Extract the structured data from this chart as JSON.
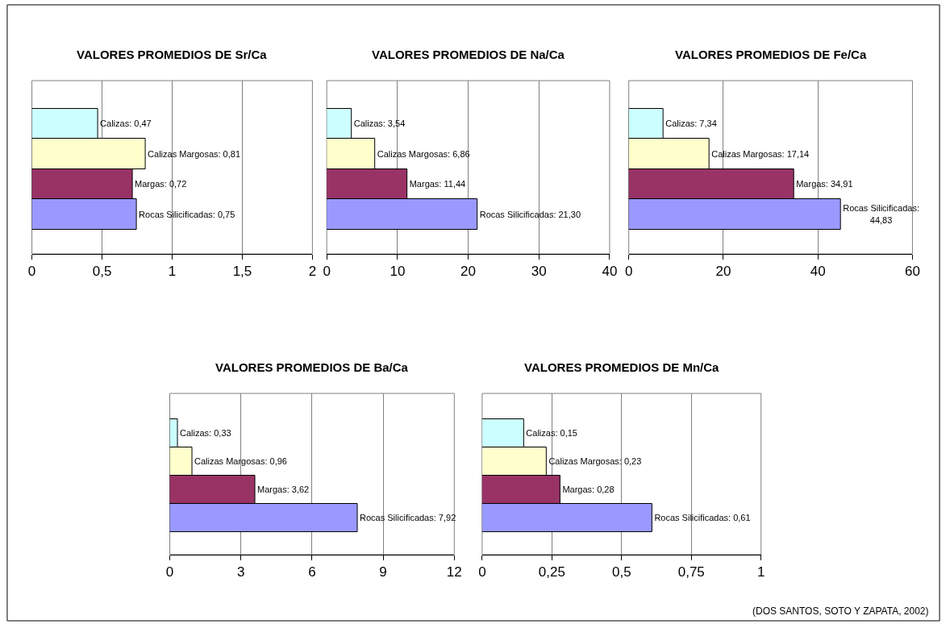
{
  "chart_data": [
    {
      "type": "bar",
      "orientation": "horizontal",
      "title": "VALORES PROMEDIOS DE Sr/Ca",
      "categories": [
        null,
        null,
        null,
        null
      ],
      "values": [
        0.47,
        0.81,
        0.72,
        0.75
      ],
      "colors": [
        "#ccffff",
        "#ffffcc",
        "#993366",
        "#9999ff"
      ],
      "value_labels": [
        "Calizas: 0,47",
        "Calizas Margosas: 0,81",
        "Margas: 0,72",
        "Rocas Silicificadas: 0,75"
      ],
      "xlim": [
        0,
        2
      ],
      "xticks": [
        0,
        {
          "value": 0.5,
          "label": "0,5"
        },
        1,
        {
          "value": 1.5,
          "label": "1,5"
        },
        2
      ],
      "grid": "x",
      "tick_labels": "x"
    },
    {
      "type": "bar",
      "orientation": "horizontal",
      "title": "VALORES PROMEDIOS DE Na/Ca",
      "categories": [
        null,
        null,
        null,
        null
      ],
      "values": [
        3.54,
        6.86,
        11.44,
        21.3
      ],
      "colors": [
        "#ccffff",
        "#ffffcc",
        "#993366",
        "#9999ff"
      ],
      "value_labels": [
        "Calizas: 3,54",
        "Calizas Margosas: 6,86",
        "Margas: 11,44",
        "Rocas Silicificadas: 21,30"
      ],
      "xlim": [
        0,
        40
      ],
      "xticks": [
        0,
        10,
        20,
        30,
        40
      ],
      "grid": "x",
      "tick_labels": "x"
    },
    {
      "type": "bar",
      "orientation": "horizontal",
      "title": "VALORES PROMEDIOS DE Fe/Ca",
      "categories": [
        null,
        null,
        null,
        null
      ],
      "values": [
        7.34,
        17.14,
        34.91,
        44.83
      ],
      "colors": [
        "#ccffff",
        "#ffffcc",
        "#993366",
        "#9999ff"
      ],
      "value_labels": [
        "Calizas: 7,34",
        "Calizas Margosas: 17,14",
        "Margas: 34,91",
        "Rocas Silicificadas:\n44,83"
      ],
      "xlim": [
        0,
        60
      ],
      "xticks": [
        0,
        20,
        40,
        60
      ],
      "grid": "x",
      "tick_labels": "x"
    },
    {
      "type": "bar",
      "orientation": "horizontal",
      "title": "VALORES PROMEDIOS DE Ba/Ca",
      "categories": [
        null,
        null,
        null,
        null
      ],
      "values": [
        0.33,
        0.96,
        3.62,
        7.92
      ],
      "colors": [
        "#ccffff",
        "#ffffcc",
        "#993366",
        "#9999ff"
      ],
      "value_labels": [
        "Calizas: 0,33",
        "Calizas Margosas: 0,96",
        "Margas: 3,62",
        "Rocas Silicificadas: 7,92"
      ],
      "xlim": [
        0,
        12
      ],
      "xticks": [
        0,
        3,
        6,
        9,
        12
      ],
      "grid": "x",
      "tick_labels": "x"
    },
    {
      "type": "bar",
      "orientation": "horizontal",
      "title": "VALORES PROMEDIOS DE Mn/Ca",
      "categories": [
        null,
        null,
        null,
        null
      ],
      "values": [
        0.15,
        0.23,
        0.28,
        0.61
      ],
      "colors": [
        "#ccffff",
        "#ffffcc",
        "#993366",
        "#9999ff"
      ],
      "value_labels": [
        "Calizas: 0,15",
        "Calizas Margosas: 0,23",
        "Margas: 0,28",
        "Rocas Silicificadas: 0,61"
      ],
      "xlim": [
        0,
        1
      ],
      "xticks": [
        0,
        {
          "value": 0.25,
          "label": "0,25"
        },
        {
          "value": 0.5,
          "label": "0,5"
        },
        {
          "value": 0.75,
          "label": "0,75"
        },
        1
      ],
      "grid": "x",
      "tick_labels": "x",
      "annotations": [
        "(DOS SANTOS, SOTO Y ZAPATA, 2002)"
      ]
    }
  ]
}
